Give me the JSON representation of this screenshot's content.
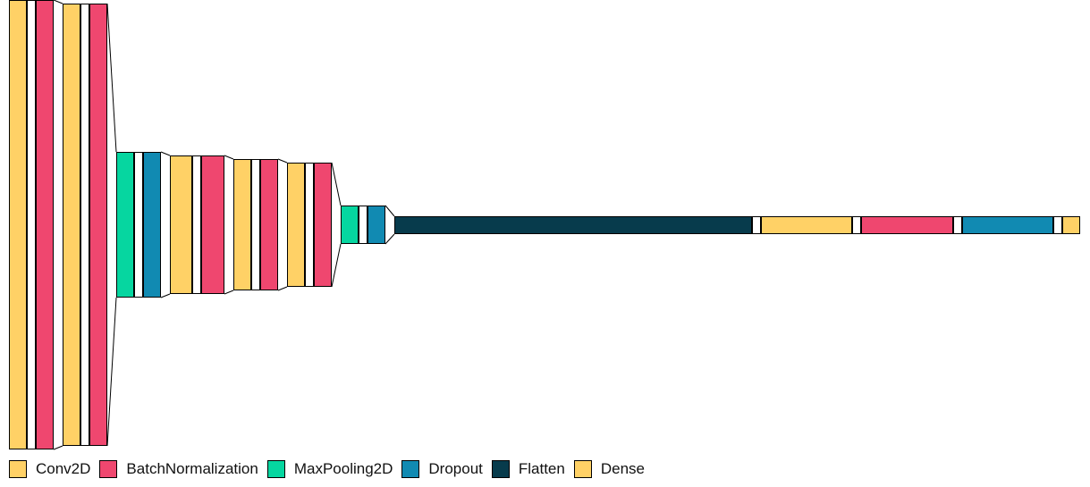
{
  "diagram": {
    "layers": [
      {
        "type": "conv2d"
      },
      {
        "type": "spacer"
      },
      {
        "type": "batchnorm"
      },
      {
        "type": "conv2d"
      },
      {
        "type": "spacer"
      },
      {
        "type": "batchnorm"
      },
      {
        "type": "maxpool"
      },
      {
        "type": "spacer"
      },
      {
        "type": "dropout"
      },
      {
        "type": "conv2d"
      },
      {
        "type": "spacer"
      },
      {
        "type": "batchnorm"
      },
      {
        "type": "conv2d"
      },
      {
        "type": "spacer"
      },
      {
        "type": "batchnorm"
      },
      {
        "type": "conv2d"
      },
      {
        "type": "spacer"
      },
      {
        "type": "batchnorm"
      },
      {
        "type": "maxpool"
      },
      {
        "type": "spacer"
      },
      {
        "type": "dropout"
      },
      {
        "type": "flatten"
      },
      {
        "type": "spacer"
      },
      {
        "type": "dense"
      },
      {
        "type": "spacer"
      },
      {
        "type": "batchnorm"
      },
      {
        "type": "spacer"
      },
      {
        "type": "dropout"
      },
      {
        "type": "spacer"
      },
      {
        "type": "dense"
      }
    ]
  },
  "legend": [
    {
      "label": "Conv2D",
      "color": "#FFD166"
    },
    {
      "label": "BatchNormalization",
      "color": "#EF476F"
    },
    {
      "label": "MaxPooling2D",
      "color": "#06D6A0"
    },
    {
      "label": "Dropout",
      "color": "#118AB2"
    },
    {
      "label": "Flatten",
      "color": "#073B4C"
    },
    {
      "label": "Dense",
      "color": "#FFD166"
    }
  ],
  "colors": {
    "conv2d": "#FFD166",
    "batchnorm": "#EF476F",
    "maxpool": "#06D6A0",
    "dropout": "#118AB2",
    "flatten": "#073B4C",
    "dense": "#FFD166",
    "spacer": "#FFFFFF"
  }
}
